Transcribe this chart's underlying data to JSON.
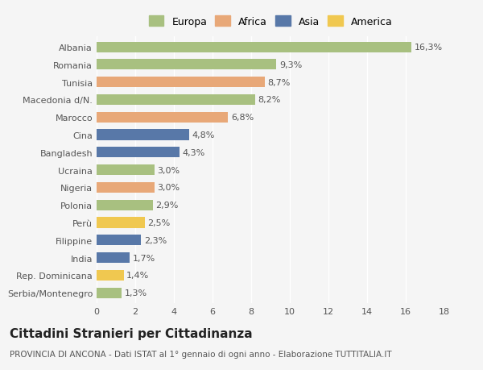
{
  "categories": [
    "Albania",
    "Romania",
    "Tunisia",
    "Macedonia d/N.",
    "Marocco",
    "Cina",
    "Bangladesh",
    "Ucraina",
    "Nigeria",
    "Polonia",
    "Perù",
    "Filippine",
    "India",
    "Rep. Dominicana",
    "Serbia/Montenegro"
  ],
  "values": [
    16.3,
    9.3,
    8.7,
    8.2,
    6.8,
    4.8,
    4.3,
    3.0,
    3.0,
    2.9,
    2.5,
    2.3,
    1.7,
    1.4,
    1.3
  ],
  "labels": [
    "16,3%",
    "9,3%",
    "8,7%",
    "8,2%",
    "6,8%",
    "4,8%",
    "4,3%",
    "3,0%",
    "3,0%",
    "2,9%",
    "2,5%",
    "2,3%",
    "1,7%",
    "1,4%",
    "1,3%"
  ],
  "continents": [
    "Europa",
    "Europa",
    "Africa",
    "Europa",
    "Africa",
    "Asia",
    "Asia",
    "Europa",
    "Africa",
    "Europa",
    "America",
    "Asia",
    "Asia",
    "America",
    "Europa"
  ],
  "continent_colors": {
    "Europa": "#a8c080",
    "Africa": "#e8a878",
    "Asia": "#5878a8",
    "America": "#f0c850"
  },
  "legend_order": [
    "Europa",
    "Africa",
    "Asia",
    "America"
  ],
  "xlim": [
    0,
    18
  ],
  "xticks": [
    0,
    2,
    4,
    6,
    8,
    10,
    12,
    14,
    16,
    18
  ],
  "title": "Cittadini Stranieri per Cittadinanza",
  "subtitle": "PROVINCIA DI ANCONA - Dati ISTAT al 1° gennaio di ogni anno - Elaborazione TUTTITALIA.IT",
  "background_color": "#f5f5f5",
  "bar_height": 0.6,
  "title_fontsize": 11,
  "subtitle_fontsize": 7.5,
  "label_fontsize": 8,
  "tick_fontsize": 8,
  "legend_fontsize": 9
}
